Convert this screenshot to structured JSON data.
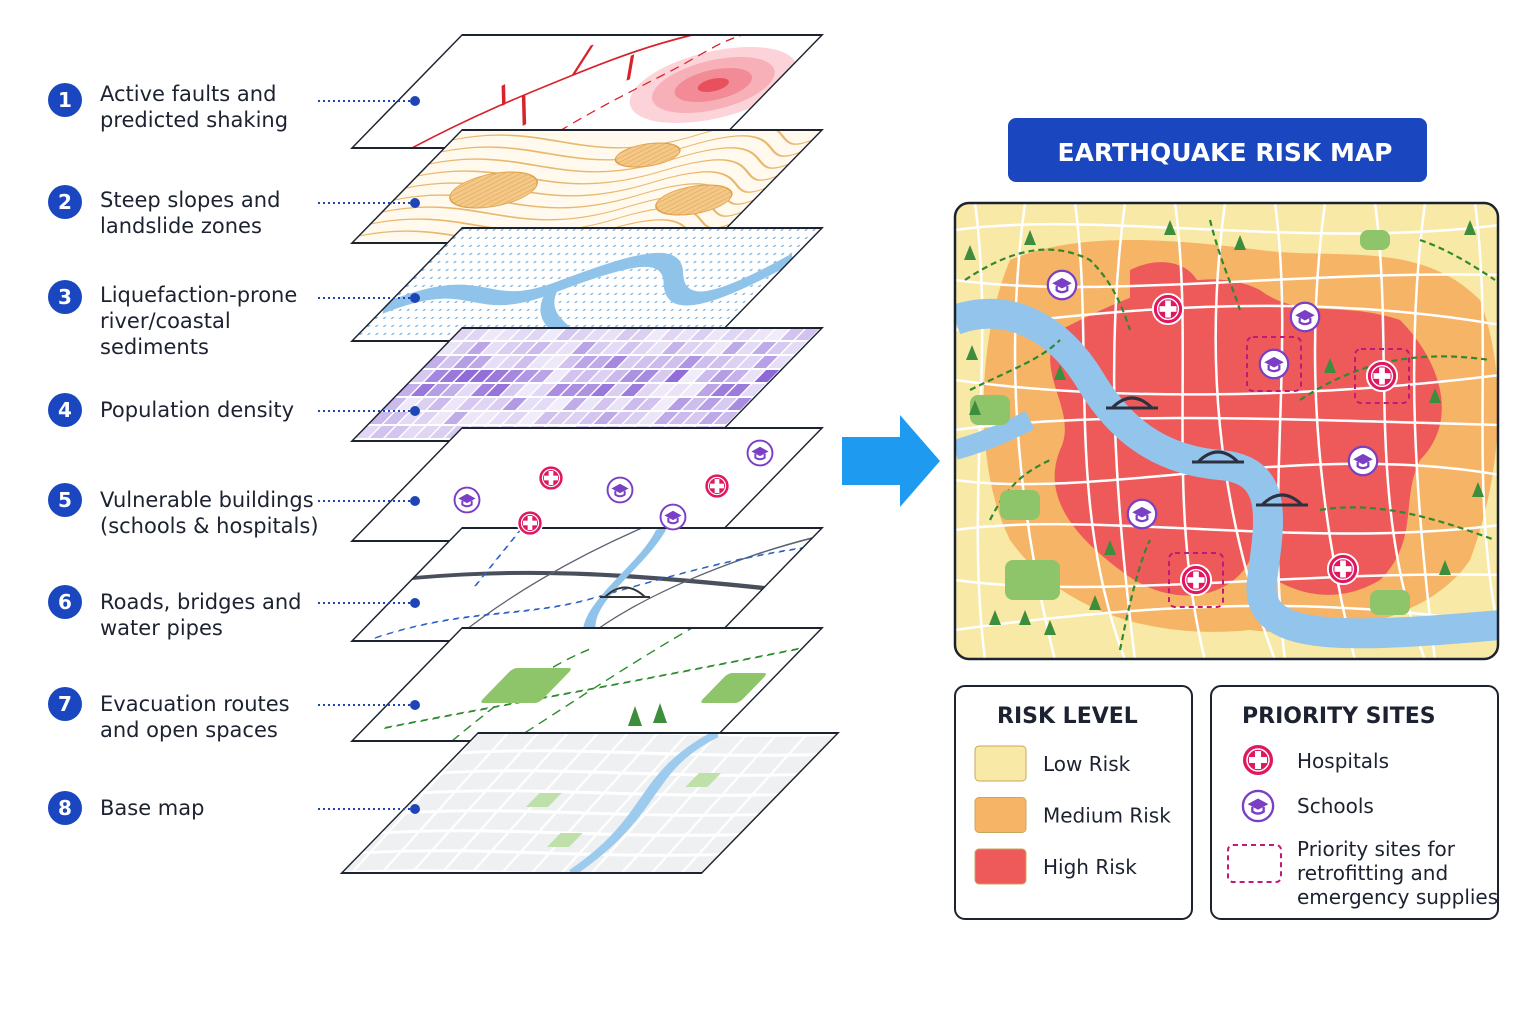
{
  "layers": [
    {
      "number": "1",
      "lines": [
        "Active faults and",
        "predicted shaking"
      ]
    },
    {
      "number": "2",
      "lines": [
        "Steep slopes and",
        "landslide zones"
      ]
    },
    {
      "number": "3",
      "lines": [
        "Liquefaction-prone",
        "river/coastal",
        "sediments"
      ]
    },
    {
      "number": "4",
      "lines": [
        "Population density"
      ]
    },
    {
      "number": "5",
      "lines": [
        "Vulnerable buildings",
        "(schools & hospitals)"
      ]
    },
    {
      "number": "6",
      "lines": [
        "Roads, bridges and",
        "water pipes"
      ]
    },
    {
      "number": "7",
      "lines": [
        "Evacuation routes",
        "and open spaces"
      ]
    },
    {
      "number": "8",
      "lines": [
        "Base map"
      ]
    }
  ],
  "map": {
    "title": "EARTHQUAKE RISK MAP"
  },
  "risk_legend": {
    "title": "RISK LEVEL",
    "items": [
      {
        "label": "Low Risk",
        "color": "#f9e9a6"
      },
      {
        "label": "Medium Risk",
        "color": "#f6b466"
      },
      {
        "label": "High Risk",
        "color": "#ee5a5a"
      }
    ]
  },
  "priority_legend": {
    "title": "PRIORITY SITES",
    "items": [
      {
        "lines": [
          "Hospitals"
        ]
      },
      {
        "lines": [
          "Schools"
        ]
      },
      {
        "lines": [
          "Priority sites for",
          "retrofitting and",
          "emergency supplies"
        ]
      }
    ]
  }
}
